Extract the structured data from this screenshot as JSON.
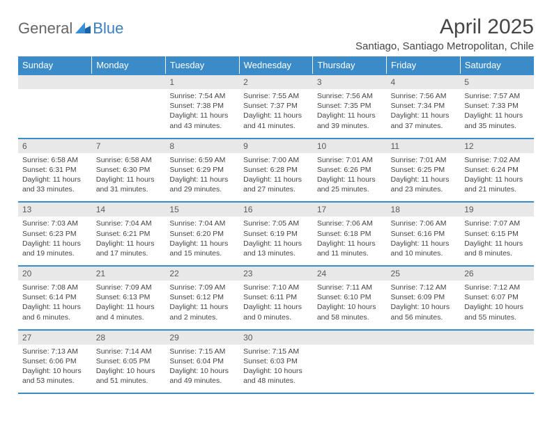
{
  "logo_text_1": "General",
  "logo_text_2": "Blue",
  "title": "April 2025",
  "location": "Santiago, Santiago Metropolitan, Chile",
  "colors": {
    "header_bg": "#3b8bc9",
    "header_text": "#ffffff",
    "daynum_bg": "#e8e8e8",
    "daynum_text": "#5a5a5a",
    "body_text": "#444444",
    "border": "#3b8bc9",
    "logo_gray": "#666666",
    "logo_blue": "#3a7ebf"
  },
  "weekdays": [
    "Sunday",
    "Monday",
    "Tuesday",
    "Wednesday",
    "Thursday",
    "Friday",
    "Saturday"
  ],
  "weeks": [
    [
      {
        "empty": true
      },
      {
        "empty": true
      },
      {
        "day": "1",
        "sunrise": "7:54 AM",
        "sunset": "7:38 PM",
        "daylight": "11 hours and 43 minutes."
      },
      {
        "day": "2",
        "sunrise": "7:55 AM",
        "sunset": "7:37 PM",
        "daylight": "11 hours and 41 minutes."
      },
      {
        "day": "3",
        "sunrise": "7:56 AM",
        "sunset": "7:35 PM",
        "daylight": "11 hours and 39 minutes."
      },
      {
        "day": "4",
        "sunrise": "7:56 AM",
        "sunset": "7:34 PM",
        "daylight": "11 hours and 37 minutes."
      },
      {
        "day": "5",
        "sunrise": "7:57 AM",
        "sunset": "7:33 PM",
        "daylight": "11 hours and 35 minutes."
      }
    ],
    [
      {
        "day": "6",
        "sunrise": "6:58 AM",
        "sunset": "6:31 PM",
        "daylight": "11 hours and 33 minutes."
      },
      {
        "day": "7",
        "sunrise": "6:58 AM",
        "sunset": "6:30 PM",
        "daylight": "11 hours and 31 minutes."
      },
      {
        "day": "8",
        "sunrise": "6:59 AM",
        "sunset": "6:29 PM",
        "daylight": "11 hours and 29 minutes."
      },
      {
        "day": "9",
        "sunrise": "7:00 AM",
        "sunset": "6:28 PM",
        "daylight": "11 hours and 27 minutes."
      },
      {
        "day": "10",
        "sunrise": "7:01 AM",
        "sunset": "6:26 PM",
        "daylight": "11 hours and 25 minutes."
      },
      {
        "day": "11",
        "sunrise": "7:01 AM",
        "sunset": "6:25 PM",
        "daylight": "11 hours and 23 minutes."
      },
      {
        "day": "12",
        "sunrise": "7:02 AM",
        "sunset": "6:24 PM",
        "daylight": "11 hours and 21 minutes."
      }
    ],
    [
      {
        "day": "13",
        "sunrise": "7:03 AM",
        "sunset": "6:23 PM",
        "daylight": "11 hours and 19 minutes."
      },
      {
        "day": "14",
        "sunrise": "7:04 AM",
        "sunset": "6:21 PM",
        "daylight": "11 hours and 17 minutes."
      },
      {
        "day": "15",
        "sunrise": "7:04 AM",
        "sunset": "6:20 PM",
        "daylight": "11 hours and 15 minutes."
      },
      {
        "day": "16",
        "sunrise": "7:05 AM",
        "sunset": "6:19 PM",
        "daylight": "11 hours and 13 minutes."
      },
      {
        "day": "17",
        "sunrise": "7:06 AM",
        "sunset": "6:18 PM",
        "daylight": "11 hours and 11 minutes."
      },
      {
        "day": "18",
        "sunrise": "7:06 AM",
        "sunset": "6:16 PM",
        "daylight": "11 hours and 10 minutes."
      },
      {
        "day": "19",
        "sunrise": "7:07 AM",
        "sunset": "6:15 PM",
        "daylight": "11 hours and 8 minutes."
      }
    ],
    [
      {
        "day": "20",
        "sunrise": "7:08 AM",
        "sunset": "6:14 PM",
        "daylight": "11 hours and 6 minutes."
      },
      {
        "day": "21",
        "sunrise": "7:09 AM",
        "sunset": "6:13 PM",
        "daylight": "11 hours and 4 minutes."
      },
      {
        "day": "22",
        "sunrise": "7:09 AM",
        "sunset": "6:12 PM",
        "daylight": "11 hours and 2 minutes."
      },
      {
        "day": "23",
        "sunrise": "7:10 AM",
        "sunset": "6:11 PM",
        "daylight": "11 hours and 0 minutes."
      },
      {
        "day": "24",
        "sunrise": "7:11 AM",
        "sunset": "6:10 PM",
        "daylight": "10 hours and 58 minutes."
      },
      {
        "day": "25",
        "sunrise": "7:12 AM",
        "sunset": "6:09 PM",
        "daylight": "10 hours and 56 minutes."
      },
      {
        "day": "26",
        "sunrise": "7:12 AM",
        "sunset": "6:07 PM",
        "daylight": "10 hours and 55 minutes."
      }
    ],
    [
      {
        "day": "27",
        "sunrise": "7:13 AM",
        "sunset": "6:06 PM",
        "daylight": "10 hours and 53 minutes."
      },
      {
        "day": "28",
        "sunrise": "7:14 AM",
        "sunset": "6:05 PM",
        "daylight": "10 hours and 51 minutes."
      },
      {
        "day": "29",
        "sunrise": "7:15 AM",
        "sunset": "6:04 PM",
        "daylight": "10 hours and 49 minutes."
      },
      {
        "day": "30",
        "sunrise": "7:15 AM",
        "sunset": "6:03 PM",
        "daylight": "10 hours and 48 minutes."
      },
      {
        "empty": true
      },
      {
        "empty": true
      },
      {
        "empty": true
      }
    ]
  ],
  "labels": {
    "sunrise": "Sunrise:",
    "sunset": "Sunset:",
    "daylight": "Daylight:"
  }
}
